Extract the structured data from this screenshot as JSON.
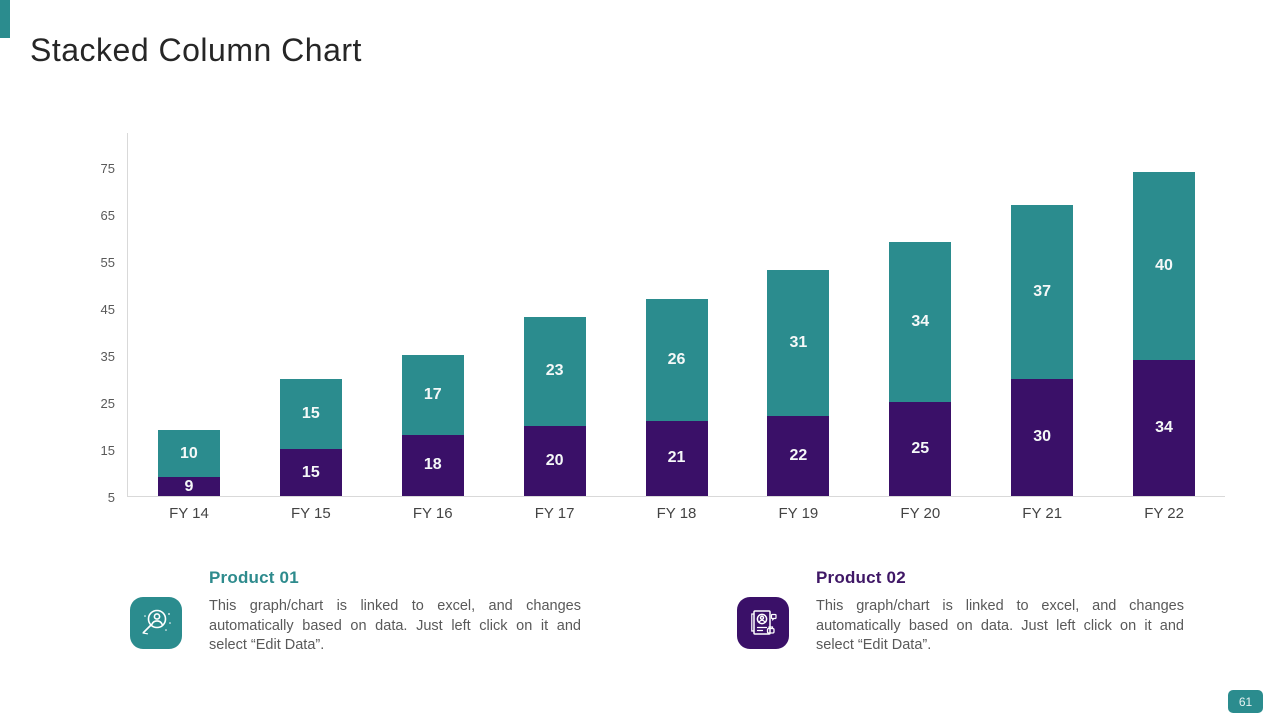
{
  "header": {
    "title": "Stacked Column Chart"
  },
  "chart_data": {
    "type": "bar",
    "stacked": true,
    "title": "Stacked Column Chart",
    "categories": [
      "FY 14",
      "FY 15",
      "FY 16",
      "FY 17",
      "FY 18",
      "FY 19",
      "FY 20",
      "FY 21",
      "FY 22"
    ],
    "series": [
      {
        "name": "Product 02",
        "position": "bottom",
        "color": "#3A1068",
        "values": [
          9,
          15,
          18,
          20,
          21,
          22,
          25,
          30,
          34
        ]
      },
      {
        "name": "Product 01",
        "position": "top",
        "color": "#2B8C8E",
        "values": [
          10,
          15,
          17,
          23,
          26,
          31,
          34,
          37,
          40
        ]
      }
    ],
    "xlabel": "",
    "ylabel": "",
    "yticks": [
      5,
      15,
      25,
      35,
      45,
      55,
      65,
      75
    ],
    "ylim": [
      5,
      82
    ],
    "grid": false,
    "data_labels": true,
    "legend_position": "bottom"
  },
  "legend": {
    "items": [
      {
        "title": "Product 01",
        "color": "#2E8B8D",
        "icon": "magnifier-person-icon",
        "description": "This graph/chart is linked to excel, and changes automatically based on data. Just left click on it and select “Edit Data”."
      },
      {
        "title": "Product 02",
        "color": "#3F1766",
        "icon": "document-person-icon",
        "description": "This graph/chart is linked to excel, and changes automatically based on data. Just left click on it and select “Edit Data”."
      }
    ]
  },
  "footer": {
    "page_number": "61"
  }
}
